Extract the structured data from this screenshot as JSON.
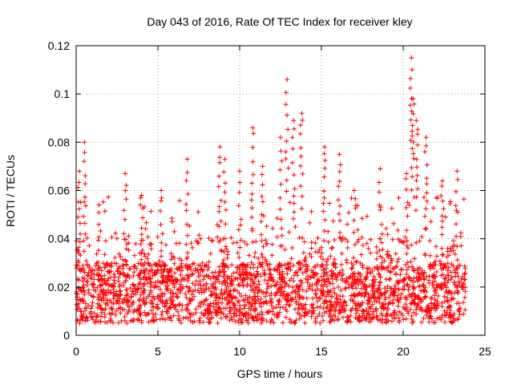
{
  "chart_data": {
    "type": "scatter",
    "title": "Day 043 of 2016, Rate Of TEC Index for receiver kley",
    "xlabel": "GPS time / hours",
    "ylabel": "ROTI / TECUs",
    "xlim": [
      0,
      25
    ],
    "ylim": [
      0,
      0.12
    ],
    "xticks": [
      0,
      5,
      10,
      15,
      20,
      25
    ],
    "yticks": [
      0,
      0.02,
      0.04,
      0.06,
      0.08,
      0.1,
      0.12
    ],
    "xtick_labels": [
      "0",
      "5",
      "10",
      "15",
      "20",
      "25"
    ],
    "ytick_labels": [
      "0",
      "0.02",
      "0.04",
      "0.06",
      "0.08",
      "0.1",
      "0.12"
    ],
    "grid": true,
    "marker": "+",
    "series": [
      {
        "name": "ROTI",
        "color": "#ff0000",
        "time_range_hours": [
          0.0,
          23.8
        ],
        "baseline_range": [
          0.005,
          0.03
        ],
        "notable_peaks": [
          {
            "x": 0.2,
            "y": 0.068
          },
          {
            "x": 0.5,
            "y": 0.08
          },
          {
            "x": 1.4,
            "y": 0.054
          },
          {
            "x": 3.0,
            "y": 0.067
          },
          {
            "x": 4.0,
            "y": 0.058
          },
          {
            "x": 5.2,
            "y": 0.06
          },
          {
            "x": 6.8,
            "y": 0.073
          },
          {
            "x": 8.8,
            "y": 0.078
          },
          {
            "x": 9.1,
            "y": 0.073
          },
          {
            "x": 10.0,
            "y": 0.068
          },
          {
            "x": 10.8,
            "y": 0.086
          },
          {
            "x": 11.4,
            "y": 0.07
          },
          {
            "x": 12.5,
            "y": 0.082
          },
          {
            "x": 12.9,
            "y": 0.106
          },
          {
            "x": 13.3,
            "y": 0.089
          },
          {
            "x": 13.8,
            "y": 0.092
          },
          {
            "x": 15.2,
            "y": 0.078
          },
          {
            "x": 16.1,
            "y": 0.075
          },
          {
            "x": 17.0,
            "y": 0.06
          },
          {
            "x": 18.6,
            "y": 0.069
          },
          {
            "x": 20.2,
            "y": 0.067
          },
          {
            "x": 20.5,
            "y": 0.115
          },
          {
            "x": 20.6,
            "y": 0.098
          },
          {
            "x": 20.8,
            "y": 0.089
          },
          {
            "x": 21.4,
            "y": 0.082
          },
          {
            "x": 22.4,
            "y": 0.064
          },
          {
            "x": 23.3,
            "y": 0.068
          }
        ]
      }
    ]
  }
}
